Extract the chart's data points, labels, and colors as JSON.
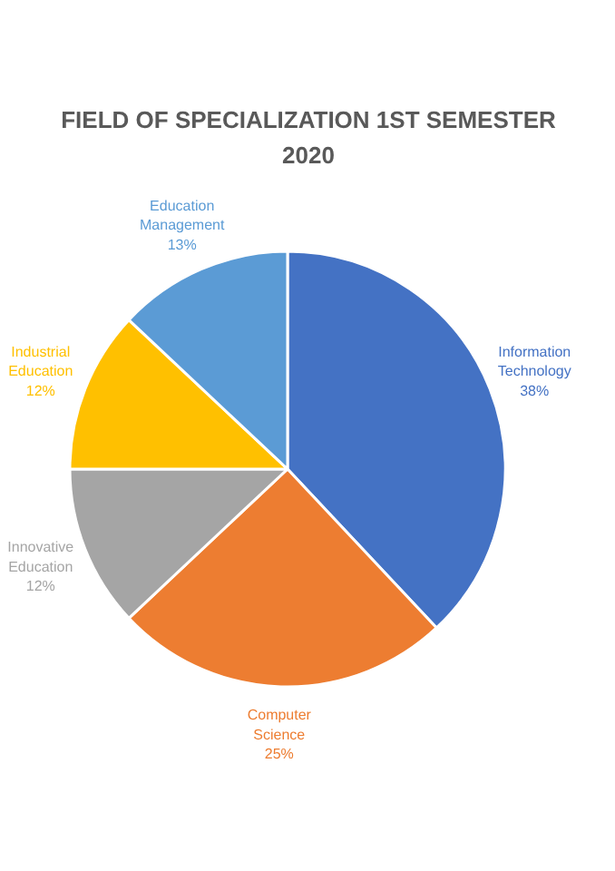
{
  "chart_data": {
    "type": "pie",
    "title": "FIELD OF SPECIALIZATION 1ST SEMESTER 2020",
    "categories": [
      "Information Technology",
      "Computer Science",
      "Innovative Education",
      "Industrial Education",
      "Education Management"
    ],
    "values": [
      38,
      25,
      12,
      12,
      13
    ],
    "colors": [
      "#4472c4",
      "#ed7d31",
      "#a5a5a5",
      "#ffc000",
      "#5b9bd5"
    ],
    "value_labels": [
      "38%",
      "25%",
      "12%",
      "12%",
      "13%"
    ]
  }
}
